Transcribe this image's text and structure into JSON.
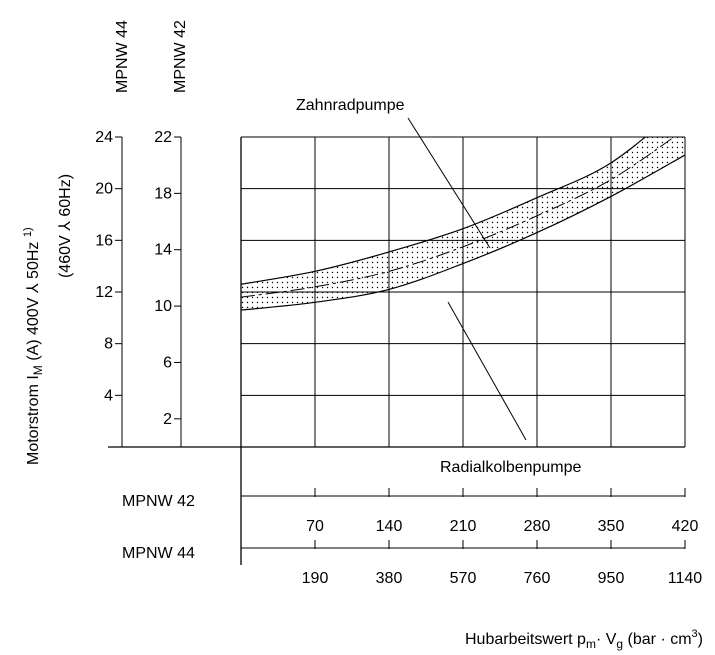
{
  "chart_data": {
    "type": "line",
    "title": "",
    "ylabel_line1": "Motorstrom I",
    "ylabel_sub": "M",
    "ylabel_line1_rest": " (A) 400V ⅄ 50Hz ",
    "ylabel_sup": "1)",
    "ylabel_line2": "(460V ⅄ 60Hz)",
    "xlabel_main": "Hubarbeitswert p",
    "xlabel_sub_m": "m",
    "xlabel_dot": "· V",
    "xlabel_sub_g": "g",
    "xlabel_unit": " (bar · cm",
    "xlabel_sup": "3",
    "xlabel_close": ")",
    "y_axes": [
      {
        "name": "MPNW 44",
        "ticks": [
          "4",
          "8",
          "12",
          "16",
          "20",
          "24"
        ],
        "ylim": [
          0,
          24
        ]
      },
      {
        "name": "MPNW 42",
        "ticks": [
          "2",
          "6",
          "10",
          "14",
          "18",
          "22"
        ],
        "ylim": [
          0,
          22
        ]
      }
    ],
    "x_axes": [
      {
        "name": "MPNW 42",
        "ticks": [
          "70",
          "140",
          "210",
          "280",
          "350",
          "420"
        ],
        "xlim": [
          0,
          420
        ]
      },
      {
        "name": "MPNW 44",
        "ticks": [
          "190",
          "380",
          "570",
          "760",
          "950",
          "1140"
        ],
        "xlim": [
          0,
          1140
        ]
      }
    ],
    "grid": true,
    "series": [
      {
        "name": "Zahnradpumpe",
        "x_mpnw42": [
          0,
          70,
          140,
          210,
          280,
          350,
          420
        ],
        "y_mpnw44": [
          12.6,
          13.6,
          15.1,
          16.9,
          19.3,
          22.0,
          26.6
        ]
      },
      {
        "name": "Radialkolbenpumpe",
        "x_mpnw42": [
          0,
          70,
          140,
          210,
          280,
          350,
          420
        ],
        "y_mpnw44": [
          10.6,
          11.2,
          12.2,
          14.2,
          16.6,
          19.4,
          22.6
        ]
      }
    ],
    "center_line_y_mpnw44": [
      11.6,
      12.4,
      13.6,
      15.5,
      17.9,
      20.7,
      24.6
    ],
    "band": "dotted area between the two curves"
  }
}
